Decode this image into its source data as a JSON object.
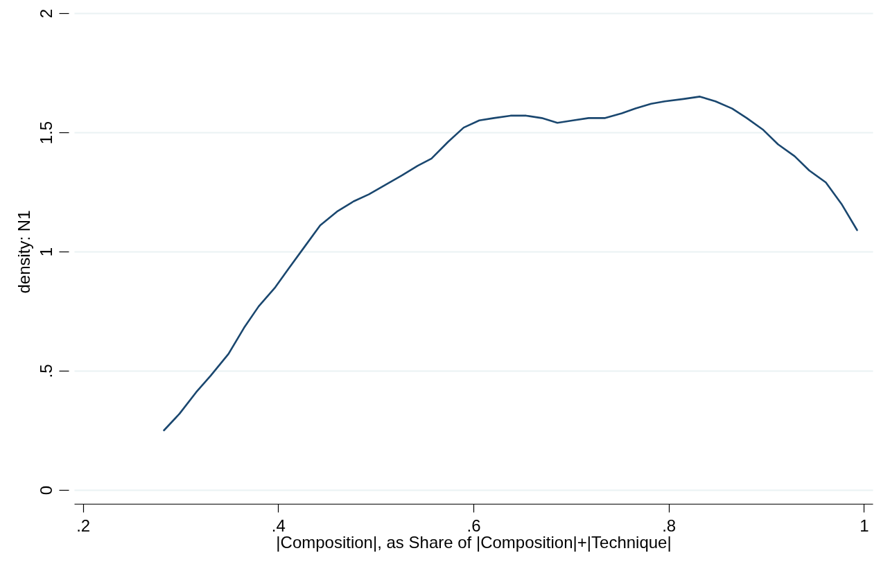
{
  "chart_data": {
    "type": "line",
    "xlabel": "|Composition|, as Share of |Composition|+|Technique|",
    "ylabel": "density: N1",
    "x": [
      0.283,
      0.299,
      0.316,
      0.331,
      0.349,
      0.365,
      0.38,
      0.397,
      0.411,
      0.427,
      0.443,
      0.461,
      0.477,
      0.493,
      0.51,
      0.527,
      0.543,
      0.557,
      0.574,
      0.59,
      0.606,
      0.621,
      0.638,
      0.654,
      0.67,
      0.686,
      0.702,
      0.718,
      0.735,
      0.752,
      0.766,
      0.782,
      0.796,
      0.815,
      0.832,
      0.848,
      0.865,
      0.88,
      0.897,
      0.912,
      0.929,
      0.944,
      0.961,
      0.977,
      0.993
    ],
    "series": [
      {
        "color": "#1a476f",
        "values": [
          0.25,
          0.32,
          0.41,
          0.48,
          0.57,
          0.68,
          0.77,
          0.85,
          0.93,
          1.02,
          1.11,
          1.17,
          1.21,
          1.24,
          1.28,
          1.32,
          1.36,
          1.39,
          1.46,
          1.52,
          1.55,
          1.56,
          1.57,
          1.57,
          1.56,
          1.54,
          1.55,
          1.56,
          1.56,
          1.58,
          1.6,
          1.62,
          1.63,
          1.64,
          1.65,
          1.63,
          1.6,
          1.56,
          1.51,
          1.45,
          1.4,
          1.34,
          1.29,
          1.2,
          1.09
        ]
      }
    ],
    "xlim": [
      0.191,
      1.009
    ],
    "ylim": [
      0,
      2
    ],
    "xticks": [
      {
        "value": 0.2,
        "label": ".2"
      },
      {
        "value": 0.4,
        "label": ".4"
      },
      {
        "value": 0.6,
        "label": ".6"
      },
      {
        "value": 0.8,
        "label": ".8"
      },
      1
    ],
    "yticks": [
      0,
      {
        "value": 0.5,
        "label": ".5"
      },
      1,
      {
        "value": 1.5,
        "label": "1.5"
      },
      2
    ],
    "grid": "y",
    "marker": "none",
    "line_style": "solid"
  }
}
